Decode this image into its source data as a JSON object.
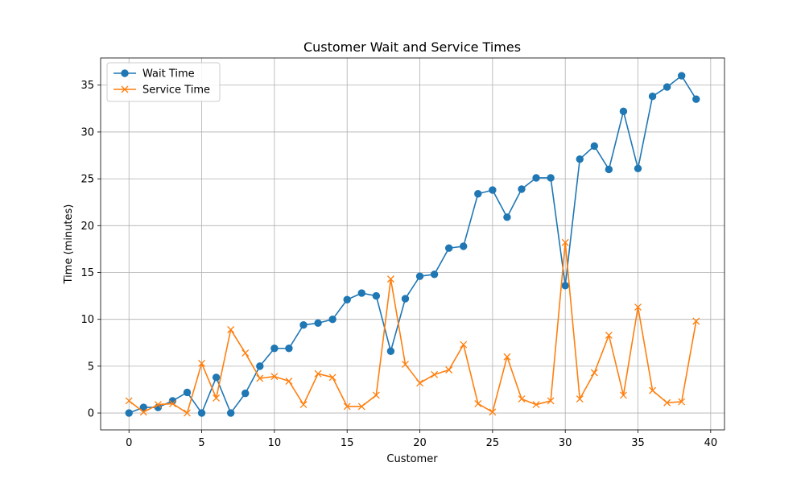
{
  "chart_data": {
    "type": "line",
    "title": "Customer Wait and Service Times",
    "xlabel": "Customer",
    "ylabel": "Time (minutes)",
    "xlim": [
      -1.95,
      40.95
    ],
    "ylim": [
      -1.8,
      37.9
    ],
    "xticks": [
      0,
      5,
      10,
      15,
      20,
      25,
      30,
      35,
      40
    ],
    "yticks": [
      0,
      5,
      10,
      15,
      20,
      25,
      30,
      35
    ],
    "grid": true,
    "legend_position": "top-left",
    "x": [
      0,
      1,
      2,
      3,
      4,
      5,
      6,
      7,
      8,
      9,
      10,
      11,
      12,
      13,
      14,
      15,
      16,
      17,
      18,
      19,
      20,
      21,
      22,
      23,
      24,
      25,
      26,
      27,
      28,
      29,
      30,
      31,
      32,
      33,
      34,
      35,
      36,
      37,
      38,
      39
    ],
    "series": [
      {
        "name": "Wait Time",
        "color": "#1f77b4",
        "marker": "circle",
        "values": [
          0.0,
          0.6,
          0.6,
          1.3,
          2.2,
          0.0,
          3.8,
          0.0,
          2.1,
          5.0,
          6.9,
          6.9,
          9.4,
          9.6,
          10.0,
          12.1,
          12.8,
          12.5,
          6.6,
          12.2,
          14.6,
          14.8,
          17.6,
          17.8,
          23.4,
          23.8,
          20.9,
          23.9,
          25.1,
          25.1,
          13.6,
          27.1,
          28.5,
          26.0,
          32.2,
          26.1,
          33.8,
          34.8,
          36.0,
          33.5
        ]
      },
      {
        "name": "Service Time",
        "color": "#ff7f0e",
        "marker": "x",
        "values": [
          1.3,
          0.1,
          0.9,
          1.0,
          0.0,
          5.3,
          1.6,
          8.9,
          6.4,
          3.7,
          3.9,
          3.4,
          0.9,
          4.2,
          3.8,
          0.7,
          0.7,
          1.9,
          14.3,
          5.2,
          3.2,
          4.1,
          4.6,
          7.3,
          1.0,
          0.1,
          6.0,
          1.5,
          0.9,
          1.3,
          18.2,
          1.5,
          4.3,
          8.3,
          1.9,
          11.3,
          2.4,
          1.1,
          1.2,
          9.8
        ]
      }
    ]
  }
}
